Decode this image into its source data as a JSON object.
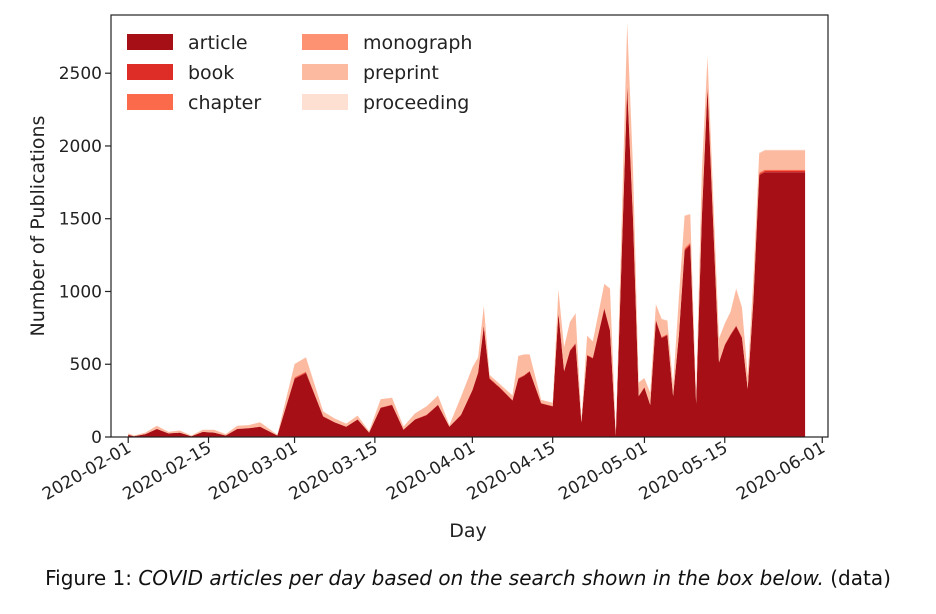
{
  "chart_data": {
    "type": "area",
    "stacked": true,
    "xlabel": "Day",
    "ylabel": "Number of Publications",
    "xlim": [
      "2020-01-29",
      "2020-06-02"
    ],
    "ylim": [
      0,
      2900
    ],
    "yticks": [
      0,
      500,
      1000,
      1500,
      2000,
      2500
    ],
    "xticks": [
      "2020-02-01",
      "2020-02-15",
      "2020-03-01",
      "2020-03-15",
      "2020-04-01",
      "2020-04-15",
      "2020-05-01",
      "2020-05-15",
      "2020-06-01"
    ],
    "grid": false,
    "legend_position": "top-left",
    "x": [
      "2020-02-01",
      "2020-02-02",
      "2020-02-04",
      "2020-02-06",
      "2020-02-08",
      "2020-02-10",
      "2020-02-12",
      "2020-02-14",
      "2020-02-16",
      "2020-02-18",
      "2020-02-20",
      "2020-02-22",
      "2020-02-24",
      "2020-02-27",
      "2020-03-01",
      "2020-03-03",
      "2020-03-06",
      "2020-03-08",
      "2020-03-10",
      "2020-03-12",
      "2020-03-14",
      "2020-03-16",
      "2020-03-18",
      "2020-03-20",
      "2020-03-22",
      "2020-03-24",
      "2020-03-26",
      "2020-03-28",
      "2020-03-30",
      "2020-04-01",
      "2020-04-02",
      "2020-04-03",
      "2020-04-04",
      "2020-04-06",
      "2020-04-08",
      "2020-04-09",
      "2020-04-10",
      "2020-04-11",
      "2020-04-13",
      "2020-04-15",
      "2020-04-16",
      "2020-04-17",
      "2020-04-18",
      "2020-04-19",
      "2020-04-20",
      "2020-04-21",
      "2020-04-22",
      "2020-04-24",
      "2020-04-25",
      "2020-04-26",
      "2020-04-28",
      "2020-04-29",
      "2020-04-30",
      "2020-05-01",
      "2020-05-02",
      "2020-05-03",
      "2020-05-04",
      "2020-05-05",
      "2020-05-06",
      "2020-05-07",
      "2020-05-08",
      "2020-05-09",
      "2020-05-10",
      "2020-05-11",
      "2020-05-12",
      "2020-05-14",
      "2020-05-15",
      "2020-05-16",
      "2020-05-17",
      "2020-05-18",
      "2020-05-19",
      "2020-05-20",
      "2020-05-21",
      "2020-05-22",
      "2020-05-23",
      "2020-05-24",
      "2020-05-25",
      "2020-05-26",
      "2020-05-27",
      "2020-05-28",
      "2020-05-29"
    ],
    "series": [
      {
        "name": "article",
        "color": "#a50f15",
        "values": [
          15,
          5,
          20,
          55,
          25,
          30,
          5,
          35,
          30,
          10,
          55,
          60,
          70,
          10,
          400,
          440,
          140,
          100,
          70,
          120,
          30,
          200,
          220,
          50,
          120,
          150,
          220,
          70,
          150,
          320,
          440,
          760,
          400,
          330,
          250,
          400,
          420,
          450,
          230,
          210,
          850,
          450,
          590,
          640,
          100,
          560,
          540,
          880,
          730,
          10,
          2400,
          1500,
          280,
          340,
          220,
          800,
          680,
          700,
          280,
          700,
          1280,
          1320,
          230,
          1500,
          2400,
          510,
          630,
          700,
          760,
          680,
          330,
          940,
          1800,
          1820,
          1820,
          1820,
          1820,
          1820,
          1820,
          1820,
          1820
        ]
      },
      {
        "name": "book",
        "color": "#de2d26",
        "values": [
          0,
          0,
          0,
          1,
          0,
          0,
          0,
          0,
          0,
          0,
          1,
          1,
          1,
          0,
          5,
          5,
          2,
          1,
          1,
          1,
          0,
          2,
          2,
          1,
          1,
          2,
          2,
          1,
          2,
          3,
          3,
          4,
          3,
          3,
          2,
          3,
          3,
          3,
          2,
          2,
          5,
          3,
          4,
          4,
          1,
          3,
          3,
          5,
          4,
          0,
          10,
          8,
          2,
          2,
          2,
          5,
          4,
          4,
          2,
          4,
          8,
          8,
          2,
          8,
          10,
          3,
          4,
          4,
          4,
          4,
          2,
          5,
          8,
          8,
          8,
          8,
          8,
          8,
          8,
          8,
          8
        ]
      },
      {
        "name": "chapter",
        "color": "#fb6a4a",
        "values": [
          0,
          0,
          0,
          1,
          0,
          0,
          0,
          0,
          0,
          0,
          1,
          1,
          1,
          0,
          5,
          5,
          2,
          1,
          1,
          1,
          0,
          2,
          2,
          1,
          1,
          2,
          2,
          1,
          2,
          3,
          3,
          4,
          3,
          3,
          2,
          3,
          3,
          3,
          2,
          2,
          5,
          3,
          4,
          4,
          1,
          3,
          3,
          5,
          4,
          0,
          10,
          8,
          2,
          2,
          2,
          5,
          4,
          4,
          2,
          4,
          8,
          8,
          2,
          8,
          10,
          3,
          4,
          4,
          4,
          4,
          2,
          5,
          8,
          8,
          8,
          8,
          8,
          8,
          8,
          8,
          8
        ]
      },
      {
        "name": "monograph",
        "color": "#fc9272",
        "values": [
          0,
          0,
          0,
          0,
          0,
          0,
          0,
          0,
          0,
          0,
          0,
          0,
          0,
          0,
          2,
          2,
          1,
          0,
          0,
          0,
          0,
          1,
          1,
          0,
          0,
          1,
          1,
          0,
          1,
          2,
          2,
          2,
          1,
          1,
          1,
          1,
          1,
          1,
          1,
          1,
          2,
          1,
          2,
          2,
          0,
          1,
          1,
          2,
          2,
          0,
          5,
          4,
          1,
          1,
          1,
          2,
          2,
          2,
          1,
          2,
          4,
          4,
          1,
          4,
          5,
          1,
          2,
          2,
          2,
          2,
          1,
          2,
          4,
          4,
          4,
          4,
          4,
          4,
          4,
          4,
          4
        ]
      },
      {
        "name": "preprint",
        "color": "#fcbba1",
        "values": [
          10,
          5,
          10,
          20,
          10,
          15,
          5,
          15,
          20,
          10,
          20,
          20,
          30,
          5,
          90,
          95,
          30,
          25,
          20,
          25,
          10,
          55,
          45,
          20,
          40,
          55,
          60,
          10,
          120,
          150,
          100,
          130,
          20,
          20,
          30,
          150,
          140,
          110,
          20,
          20,
          150,
          160,
          190,
          200,
          20,
          130,
          110,
          160,
          280,
          20,
          420,
          330,
          90,
          60,
          80,
          100,
          120,
          90,
          70,
          250,
          220,
          190,
          50,
          300,
          190,
          160,
          140,
          150,
          250,
          200,
          90,
          140,
          130,
          130,
          130,
          130,
          130,
          130,
          130,
          130,
          130
        ]
      },
      {
        "name": "proceeding",
        "color": "#fee0d2",
        "values": [
          0,
          0,
          0,
          0,
          0,
          0,
          0,
          0,
          0,
          0,
          0,
          0,
          0,
          0,
          2,
          2,
          1,
          0,
          0,
          0,
          0,
          1,
          1,
          0,
          0,
          1,
          1,
          0,
          1,
          2,
          2,
          2,
          1,
          1,
          1,
          1,
          1,
          1,
          1,
          1,
          2,
          1,
          2,
          2,
          0,
          1,
          1,
          2,
          2,
          0,
          5,
          4,
          1,
          1,
          1,
          2,
          2,
          2,
          1,
          2,
          4,
          4,
          1,
          4,
          5,
          1,
          2,
          2,
          2,
          2,
          1,
          2,
          4,
          4,
          4,
          4,
          4,
          4,
          4,
          4,
          4
        ]
      }
    ]
  },
  "caption": {
    "prefix": "Figure 1: ",
    "italic": "COVID articles per day based on the search shown in the box below.",
    "suffix": " (data)"
  }
}
